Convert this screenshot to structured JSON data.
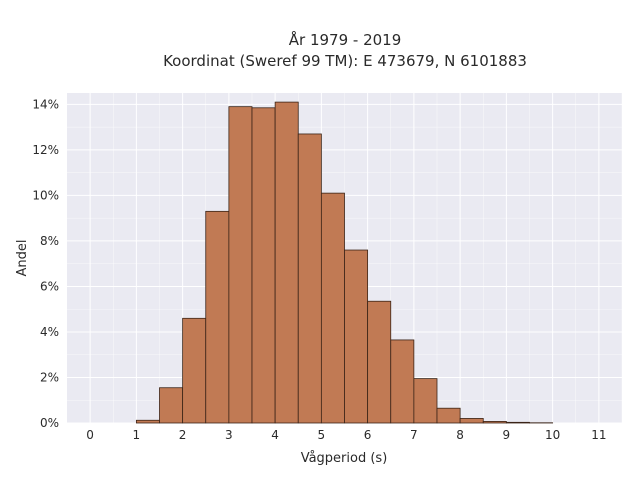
{
  "chart_data": {
    "type": "bar",
    "title_line1": "År 1979 - 2019",
    "title_line2": "Koordinat (Sweref 99 TM): E 473679, N 6101883",
    "xlabel": "Vågperiod (s)",
    "ylabel": "Andel",
    "xlim": [
      -0.5,
      11.5
    ],
    "ylim": [
      0,
      14.5
    ],
    "x_ticks": [
      0,
      1,
      2,
      3,
      4,
      5,
      6,
      7,
      8,
      9,
      10,
      11
    ],
    "x_tick_labels": [
      "0",
      "1",
      "2",
      "3",
      "4",
      "5",
      "6",
      "7",
      "8",
      "9",
      "10",
      "11"
    ],
    "y_ticks": [
      0,
      2,
      4,
      6,
      8,
      10,
      12,
      14
    ],
    "y_tick_labels": [
      "0%",
      "2%",
      "4%",
      "6%",
      "8%",
      "10%",
      "12%",
      "14%"
    ],
    "bin_width": 0.5,
    "bins": [
      {
        "x0": 1.0,
        "value": 0.12
      },
      {
        "x0": 1.5,
        "value": 1.55
      },
      {
        "x0": 2.0,
        "value": 4.6
      },
      {
        "x0": 2.5,
        "value": 9.3
      },
      {
        "x0": 3.0,
        "value": 13.9
      },
      {
        "x0": 3.5,
        "value": 13.85
      },
      {
        "x0": 4.0,
        "value": 14.1
      },
      {
        "x0": 4.5,
        "value": 12.7
      },
      {
        "x0": 5.0,
        "value": 10.1
      },
      {
        "x0": 5.5,
        "value": 7.6
      },
      {
        "x0": 6.0,
        "value": 5.35
      },
      {
        "x0": 6.5,
        "value": 3.65
      },
      {
        "x0": 7.0,
        "value": 1.95
      },
      {
        "x0": 7.5,
        "value": 0.65
      },
      {
        "x0": 8.0,
        "value": 0.2
      },
      {
        "x0": 8.5,
        "value": 0.07
      },
      {
        "x0": 9.0,
        "value": 0.03
      },
      {
        "x0": 9.5,
        "value": 0.01
      }
    ],
    "grid": true,
    "colors": {
      "bar_fill": "#c17a54",
      "bar_stroke": "#3b2417",
      "plot_bg": "#eaeaf2",
      "grid": "#ffffff"
    }
  }
}
